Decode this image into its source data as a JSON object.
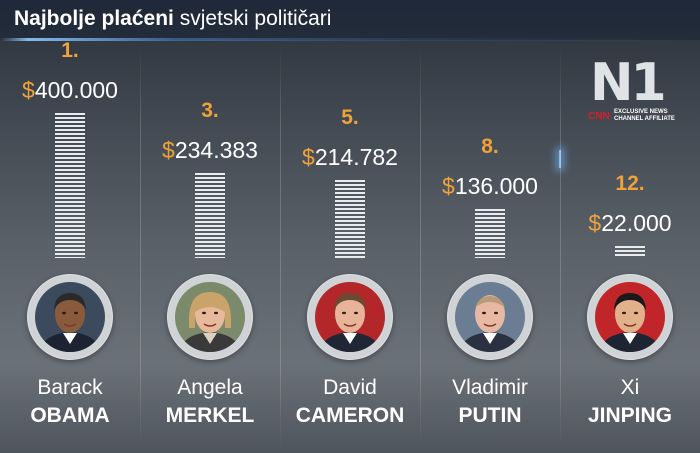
{
  "header": {
    "title_bold": "Najbolje plaćeni",
    "title_light": "svjetski političari"
  },
  "logo": {
    "mark": "N1",
    "cnn": "CNN",
    "affiliate_line1": "EXCLUSIVE NEWS",
    "affiliate_line2": "CHANNEL AFFILIATE"
  },
  "colors": {
    "accent": "#f0a23a",
    "header_bg": "#1e2838",
    "bar": "#e9ecef",
    "text": "#ffffff"
  },
  "chart_data": {
    "type": "bar",
    "currency": "$",
    "categories": [
      "Barack OBAMA",
      "Angela MERKEL",
      "David CAMERON",
      "Vladimir PUTIN",
      "Xi JINPING"
    ],
    "values": [
      400000,
      234383,
      214782,
      136000,
      22000
    ],
    "series": [
      {
        "values": [
          400000,
          234383,
          214782,
          136000,
          22000
        ]
      }
    ],
    "ylim": [
      0,
      400000
    ],
    "items": [
      {
        "rank": "1.",
        "value_label": "400.000",
        "value": 400000,
        "first": "Barack",
        "last": "OBAMA",
        "photo_icon": "obama-portrait"
      },
      {
        "rank": "3.",
        "value_label": "234.383",
        "value": 234383,
        "first": "Angela",
        "last": "MERKEL",
        "photo_icon": "merkel-portrait"
      },
      {
        "rank": "5.",
        "value_label": "214.782",
        "value": 214782,
        "first": "David",
        "last": "CAMERON",
        "photo_icon": "cameron-portrait"
      },
      {
        "rank": "8.",
        "value_label": "136.000",
        "value": 136000,
        "first": "Vladimir",
        "last": "PUTIN",
        "photo_icon": "putin-portrait"
      },
      {
        "rank": "12.",
        "value_label": "22.000",
        "value": 22000,
        "first": "Xi",
        "last": "JINPING",
        "photo_icon": "xi-portrait"
      }
    ]
  }
}
